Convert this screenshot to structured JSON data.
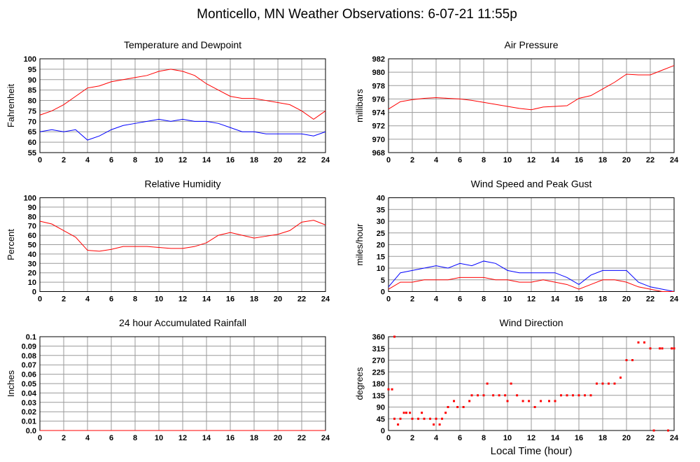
{
  "title": "Monticello, MN Weather Observations: 6-07-21 11:55p",
  "chart_data": [
    {
      "type": "line",
      "title": "Temperature and Dewpoint",
      "ylabel": "Fahrenheit",
      "x": [
        0,
        1,
        2,
        3,
        4,
        5,
        6,
        7,
        8,
        9,
        10,
        11,
        12,
        13,
        14,
        15,
        16,
        17,
        18,
        19,
        20,
        21,
        22,
        23,
        24
      ],
      "xlim": [
        0,
        24
      ],
      "xticks": [
        0,
        2,
        4,
        6,
        8,
        10,
        12,
        14,
        16,
        18,
        20,
        22,
        24
      ],
      "ylim": [
        55,
        100
      ],
      "yticks": [
        55,
        60,
        65,
        70,
        75,
        80,
        85,
        90,
        95,
        100
      ],
      "grid": true,
      "series": [
        {
          "color": "#ff0000",
          "values": [
            73,
            75,
            78,
            82,
            86,
            87,
            89,
            90,
            91,
            92,
            94,
            95,
            94,
            92,
            88,
            85,
            82,
            81,
            81,
            80,
            79,
            78,
            75,
            71,
            75
          ]
        },
        {
          "color": "#0000ff",
          "values": [
            65,
            66,
            65,
            66,
            61,
            63,
            66,
            68,
            69,
            70,
            71,
            70,
            71,
            70,
            70,
            69,
            67,
            65,
            65,
            64,
            64,
            64,
            64,
            63,
            65
          ]
        }
      ]
    },
    {
      "type": "line",
      "title": "Air Pressure",
      "ylabel": "millibars",
      "x": [
        0,
        1,
        2,
        3,
        4,
        5,
        6,
        7,
        8,
        9,
        10,
        11,
        12,
        13,
        14,
        15,
        16,
        17,
        18,
        19,
        20,
        21,
        22,
        23,
        24
      ],
      "xlim": [
        0,
        24
      ],
      "xticks": [
        0,
        2,
        4,
        6,
        8,
        10,
        12,
        14,
        16,
        18,
        20,
        22,
        24
      ],
      "ylim": [
        968,
        982
      ],
      "yticks": [
        968,
        970,
        972,
        974,
        976,
        978,
        980,
        982
      ],
      "grid": true,
      "series": [
        {
          "color": "#ff0000",
          "values": [
            974.5,
            975.6,
            975.9,
            976.1,
            976.2,
            976.1,
            976.0,
            975.8,
            975.5,
            975.2,
            974.9,
            974.6,
            974.4,
            974.8,
            974.9,
            975.0,
            976.1,
            976.5,
            977.5,
            978.5,
            979.7,
            979.6,
            979.6,
            980.3,
            981.0
          ]
        }
      ]
    },
    {
      "type": "line",
      "title": "Relative Humidity",
      "ylabel": "Percent",
      "x": [
        0,
        1,
        2,
        3,
        4,
        5,
        6,
        7,
        8,
        9,
        10,
        11,
        12,
        13,
        14,
        15,
        16,
        17,
        18,
        19,
        20,
        21,
        22,
        23,
        24
      ],
      "xlim": [
        0,
        24
      ],
      "xticks": [
        0,
        2,
        4,
        6,
        8,
        10,
        12,
        14,
        16,
        18,
        20,
        22,
        24
      ],
      "ylim": [
        0,
        100
      ],
      "yticks": [
        0,
        10,
        20,
        30,
        40,
        50,
        60,
        70,
        80,
        90,
        100
      ],
      "grid": true,
      "series": [
        {
          "color": "#ff0000",
          "values": [
            75,
            72,
            65,
            58,
            44,
            43,
            45,
            48,
            48,
            48,
            47,
            46,
            46,
            48,
            52,
            60,
            63,
            60,
            57,
            59,
            61,
            65,
            74,
            76,
            71
          ]
        }
      ]
    },
    {
      "type": "line",
      "title": "Wind Speed and Peak Gust",
      "ylabel": "miles/hour",
      "x": [
        0,
        1,
        2,
        3,
        4,
        5,
        6,
        7,
        8,
        9,
        10,
        11,
        12,
        13,
        14,
        15,
        16,
        17,
        18,
        19,
        20,
        21,
        22,
        23,
        24
      ],
      "xlim": [
        0,
        24
      ],
      "xticks": [
        0,
        2,
        4,
        6,
        8,
        10,
        12,
        14,
        16,
        18,
        20,
        22,
        24
      ],
      "ylim": [
        0,
        40
      ],
      "yticks": [
        0,
        5,
        10,
        15,
        20,
        25,
        30,
        35,
        40
      ],
      "grid": true,
      "series": [
        {
          "color": "#0000ff",
          "values": [
            2,
            8,
            9,
            10,
            11,
            10,
            12,
            11,
            13,
            12,
            9,
            8,
            8,
            8,
            8,
            6,
            3,
            7,
            9,
            9,
            9,
            4,
            2,
            1,
            0
          ]
        },
        {
          "color": "#ff0000",
          "values": [
            1,
            4,
            4,
            5,
            5,
            5,
            6,
            6,
            6,
            5,
            5,
            4,
            4,
            5,
            4,
            3,
            1,
            3,
            5,
            5,
            4,
            2,
            1,
            0,
            0
          ]
        }
      ]
    },
    {
      "type": "line",
      "title": "24 hour Accumulated Rainfall",
      "ylabel": "Inches",
      "x": [
        0,
        1,
        2,
        3,
        4,
        5,
        6,
        7,
        8,
        9,
        10,
        11,
        12,
        13,
        14,
        15,
        16,
        17,
        18,
        19,
        20,
        21,
        22,
        23,
        24
      ],
      "xlim": [
        0,
        24
      ],
      "xticks": [
        0,
        2,
        4,
        6,
        8,
        10,
        12,
        14,
        16,
        18,
        20,
        22,
        24
      ],
      "ylim": [
        0,
        0.1
      ],
      "yticks": [
        {
          "value": 0,
          "label": "0.0"
        },
        0.01,
        0.02,
        0.03,
        0.04,
        0.05,
        0.06,
        0.07,
        0.08,
        0.09,
        0.1
      ],
      "grid": true,
      "series": [
        {
          "color": "#ff0000",
          "values": [
            0,
            0,
            0,
            0,
            0,
            0,
            0,
            0,
            0,
            0,
            0,
            0,
            0,
            0,
            0,
            0,
            0,
            0,
            0,
            0,
            0,
            0,
            0,
            0,
            0
          ]
        }
      ]
    },
    {
      "type": "scatter",
      "title": "Wind Direction",
      "ylabel": "degrees",
      "xlabel": "Local Time (hour)",
      "xlim": [
        0,
        24
      ],
      "xticks": [
        0,
        2,
        4,
        6,
        8,
        10,
        12,
        14,
        16,
        18,
        20,
        22,
        24
      ],
      "ylim": [
        0,
        360
      ],
      "yticks": [
        0,
        45,
        90,
        135,
        180,
        225,
        270,
        315,
        360
      ],
      "grid": true,
      "color": "#ff0000",
      "x": [
        0,
        0.3,
        0.5,
        0.5,
        0.8,
        1,
        1.3,
        1.5,
        1.8,
        2,
        2.5,
        2.8,
        3,
        3.5,
        3.8,
        4,
        4.3,
        4.5,
        4.8,
        5,
        5.5,
        5.8,
        6.3,
        6.8,
        7,
        7.5,
        8,
        8.3,
        8.8,
        9.3,
        9.8,
        10,
        10.3,
        10.8,
        11.3,
        11.8,
        12.3,
        12.8,
        13.5,
        14,
        14.5,
        15,
        15.5,
        16,
        16.5,
        17,
        17.5,
        18,
        18.5,
        19,
        19.5,
        20,
        20.5,
        21,
        21.5,
        22,
        22.3,
        22.8,
        23,
        23.5,
        23.8,
        24
      ],
      "values": [
        158,
        158,
        360,
        45,
        23,
        45,
        68,
        68,
        68,
        45,
        45,
        68,
        45,
        45,
        23,
        45,
        23,
        45,
        68,
        90,
        113,
        90,
        90,
        113,
        135,
        135,
        135,
        180,
        135,
        135,
        135,
        113,
        180,
        135,
        113,
        113,
        90,
        113,
        113,
        113,
        135,
        135,
        135,
        135,
        135,
        135,
        180,
        180,
        180,
        180,
        203,
        270,
        270,
        338,
        338,
        315,
        0,
        315,
        315,
        0,
        315,
        315
      ]
    }
  ]
}
